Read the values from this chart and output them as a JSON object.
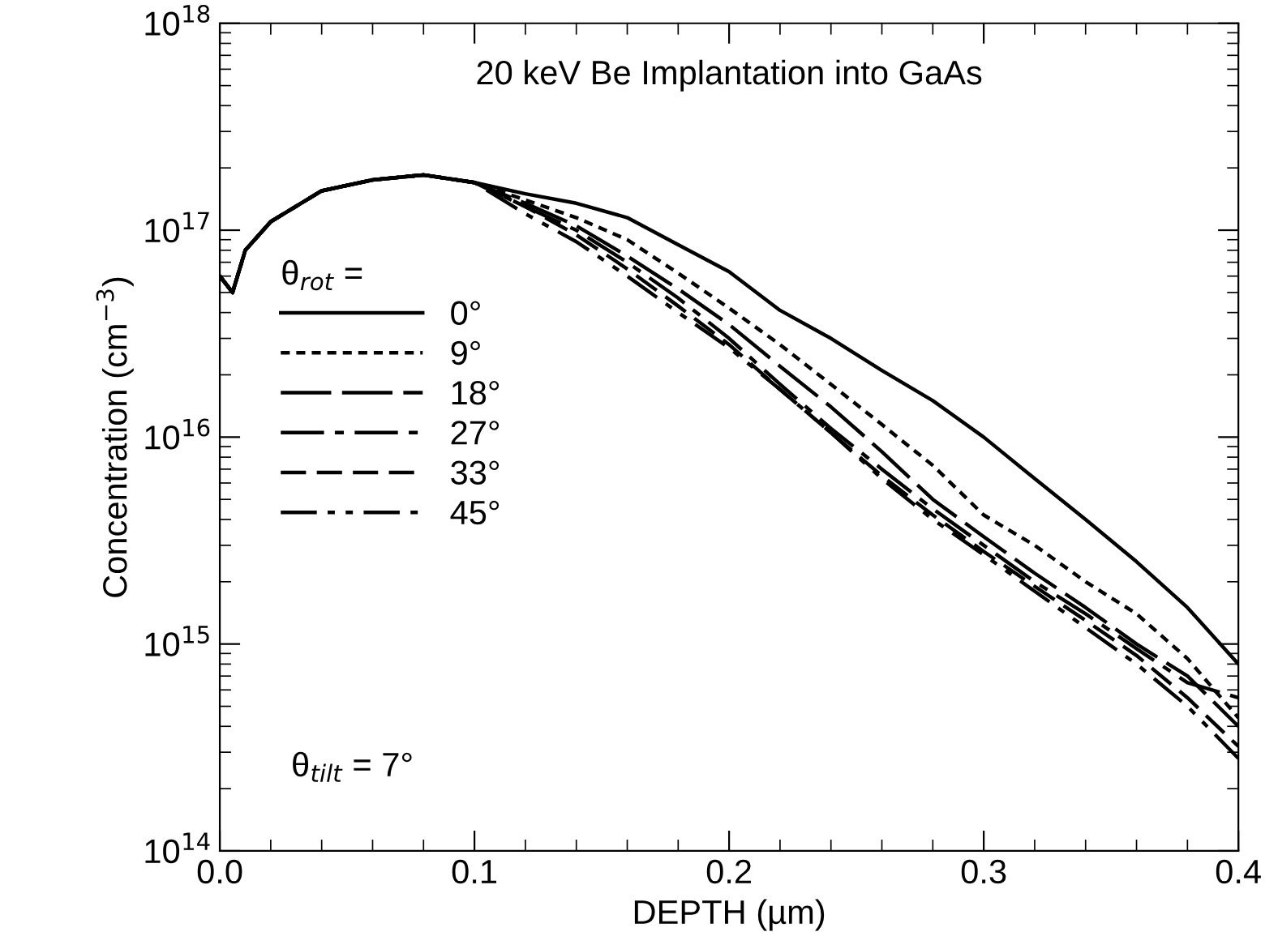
{
  "chart_data": {
    "type": "line",
    "title": "20 keV Be Implantation into GaAs",
    "xlabel": "DEPTH (µm)",
    "ylabel": "Concentration (cm$^{−3}$)",
    "legend_title": "θ$_{rot}$ =",
    "legend": "left",
    "log": "y",
    "grid": false,
    "marker": "none",
    "xlim": [
      0.0,
      0.4
    ],
    "xticks": [
      {
        "value": 0.0,
        "label": "0.0"
      },
      0.1,
      0.2,
      0.3,
      0.4
    ],
    "ylim": [
      100000000000000.0,
      1e+18
    ],
    "yticks": [
      {
        "value": 100000000000000.0,
        "label": "10$^{14}$"
      },
      {
        "value": 1000000000000000.0,
        "label": "10$^{15}$"
      },
      {
        "value": 1e+16,
        "label": "10$^{16}$"
      },
      {
        "value": 1e+17,
        "label": "10$^{17}$"
      },
      {
        "value": 1e+18,
        "label": "10$^{18}$"
      }
    ],
    "annotations": [
      "θ$_{tilt}$ = 7°"
    ],
    "x": [
      0.0,
      0.005,
      0.01,
      0.02,
      0.04,
      0.06,
      0.08,
      0.1,
      0.12,
      0.14,
      0.16,
      0.18,
      0.2,
      0.22,
      0.24,
      0.26,
      0.28,
      0.3,
      0.32,
      0.34,
      0.36,
      0.38,
      0.4
    ],
    "series": [
      {
        "name": "0°",
        "color": "#000000",
        "line_style": "solid",
        "values": [
          6e+16,
          5e+16,
          8e+16,
          1.1e+17,
          1.55e+17,
          1.75e+17,
          1.85e+17,
          1.7e+17,
          1.5e+17,
          1.35e+17,
          1.15e+17,
          8.5e+16,
          6.3e+16,
          4.1e+16,
          3e+16,
          2.1e+16,
          1.5e+16,
          1e+16,
          6300000000000000.0,
          4000000000000000.0,
          2500000000000000.0,
          1500000000000000.0,
          800000000000000.0
        ]
      },
      {
        "name": "9°",
        "color": "#000000",
        "line_style": "dotted",
        "values": [
          6e+16,
          5e+16,
          8e+16,
          1.1e+17,
          1.55e+17,
          1.75e+17,
          1.85e+17,
          1.7e+17,
          1.4e+17,
          1.15e+17,
          9e+16,
          6.2e+16,
          4.2e+16,
          2.8e+16,
          1.8e+16,
          1.15e+16,
          7300000000000000.0,
          4200000000000000.0,
          3000000000000000.0,
          2000000000000000.0,
          1400000000000000.0,
          850000000000000.0,
          440000000000000.0
        ]
      },
      {
        "name": "18°",
        "color": "#000000",
        "line_style": "longdash",
        "values": [
          6e+16,
          5e+16,
          8e+16,
          1.1e+17,
          1.55e+17,
          1.75e+17,
          1.85e+17,
          1.7e+17,
          1.35e+17,
          1.05e+17,
          7.5e+16,
          5.2e+16,
          3.5e+16,
          2.2e+16,
          1.4e+16,
          8500000000000000.0,
          5000000000000000.0,
          3300000000000000.0,
          2200000000000000.0,
          1500000000000000.0,
          1000000000000000.0,
          700000000000000.0,
          400000000000000.0
        ]
      },
      {
        "name": "27°",
        "color": "#000000",
        "line_style": "dashdot",
        "values": [
          6e+16,
          5e+16,
          8e+16,
          1.1e+17,
          1.55e+17,
          1.75e+17,
          1.85e+17,
          1.7e+17,
          1.3e+17,
          1e+17,
          7e+16,
          4.7e+16,
          3e+16,
          1.8e+16,
          1.1e+16,
          7000000000000000.0,
          4500000000000000.0,
          3000000000000000.0,
          2000000000000000.0,
          1400000000000000.0,
          950000000000000.0,
          650000000000000.0,
          550000000000000.0
        ]
      },
      {
        "name": "33°",
        "color": "#000000",
        "line_style": "dashed",
        "values": [
          6e+16,
          5e+16,
          8e+16,
          1.1e+17,
          1.55e+17,
          1.75e+17,
          1.85e+17,
          1.7e+17,
          1.3e+17,
          9.5e+16,
          6.5e+16,
          4.3e+16,
          2.8e+16,
          1.7e+16,
          1.05e+16,
          6500000000000000.0,
          4200000000000000.0,
          2800000000000000.0,
          1900000000000000.0,
          1300000000000000.0,
          880000000000000.0,
          550000000000000.0,
          320000000000000.0
        ]
      },
      {
        "name": "45°",
        "color": "#000000",
        "line_style": "dashdotdot",
        "values": [
          6e+16,
          5e+16,
          8e+16,
          1.1e+17,
          1.55e+17,
          1.75e+17,
          1.85e+17,
          1.7e+17,
          1.2e+17,
          8.8e+16,
          6e+16,
          4e+16,
          2.7e+16,
          1.7e+16,
          1.05e+16,
          6300000000000000.0,
          4000000000000000.0,
          2700000000000000.0,
          1800000000000000.0,
          1200000000000000.0,
          800000000000000.0,
          500000000000000.0,
          280000000000000.0
        ]
      }
    ]
  }
}
